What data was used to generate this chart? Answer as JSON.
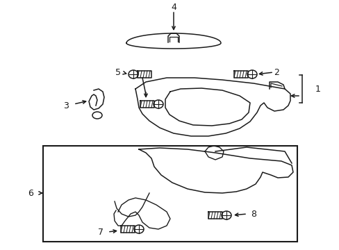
{
  "bg_color": "#ffffff",
  "line_color": "#1a1a1a",
  "line_width": 1.1,
  "label_fontsize": 9,
  "fig_width": 4.89,
  "fig_height": 3.6,
  "dpi": 100
}
